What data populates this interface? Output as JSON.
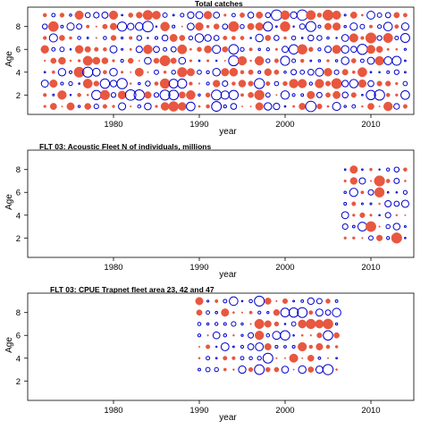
{
  "colors": {
    "positive": "#e8573f",
    "negative": "#0000cc",
    "axis": "#000000"
  },
  "chart_data": [
    {
      "type": "scatter",
      "subtype": "bubble-residuals",
      "title": "Total catches",
      "xlabel": "year",
      "ylabel": "Age",
      "xlim": [
        1970,
        2015
      ],
      "ylim": [
        0.3,
        9.7
      ],
      "xticks": [
        1980,
        1990,
        2000,
        2010
      ],
      "yticks": [
        2,
        4,
        6,
        8
      ],
      "years": [
        1972,
        2014
      ],
      "ages": [
        1,
        9
      ],
      "seed": 11
    },
    {
      "type": "scatter",
      "subtype": "bubble-residuals",
      "title": "FLT 03: Acoustic Fleet   N of individuals, millions",
      "xlabel": "year",
      "ylabel": "Age",
      "xlim": [
        1970,
        2015
      ],
      "ylim": [
        0.3,
        9.7
      ],
      "xticks": [
        1980,
        1990,
        2000,
        2010
      ],
      "yticks": [
        2,
        4,
        6,
        8
      ],
      "years": [
        2007,
        2014
      ],
      "ages": [
        2,
        8
      ],
      "seed": 23
    },
    {
      "type": "scatter",
      "subtype": "bubble-residuals",
      "title": "FLT 03: CPUE Trapnet fleet area 23, 42 and 47",
      "xlabel": "year",
      "ylabel": "Age",
      "xlim": [
        1970,
        2015
      ],
      "ylim": [
        0.3,
        9.7
      ],
      "xticks": [
        1980,
        1990,
        2000,
        2010
      ],
      "yticks": [
        2,
        4,
        6,
        8
      ],
      "years": [
        1990,
        2006
      ],
      "ages": [
        3,
        9
      ],
      "seed": 37
    }
  ]
}
